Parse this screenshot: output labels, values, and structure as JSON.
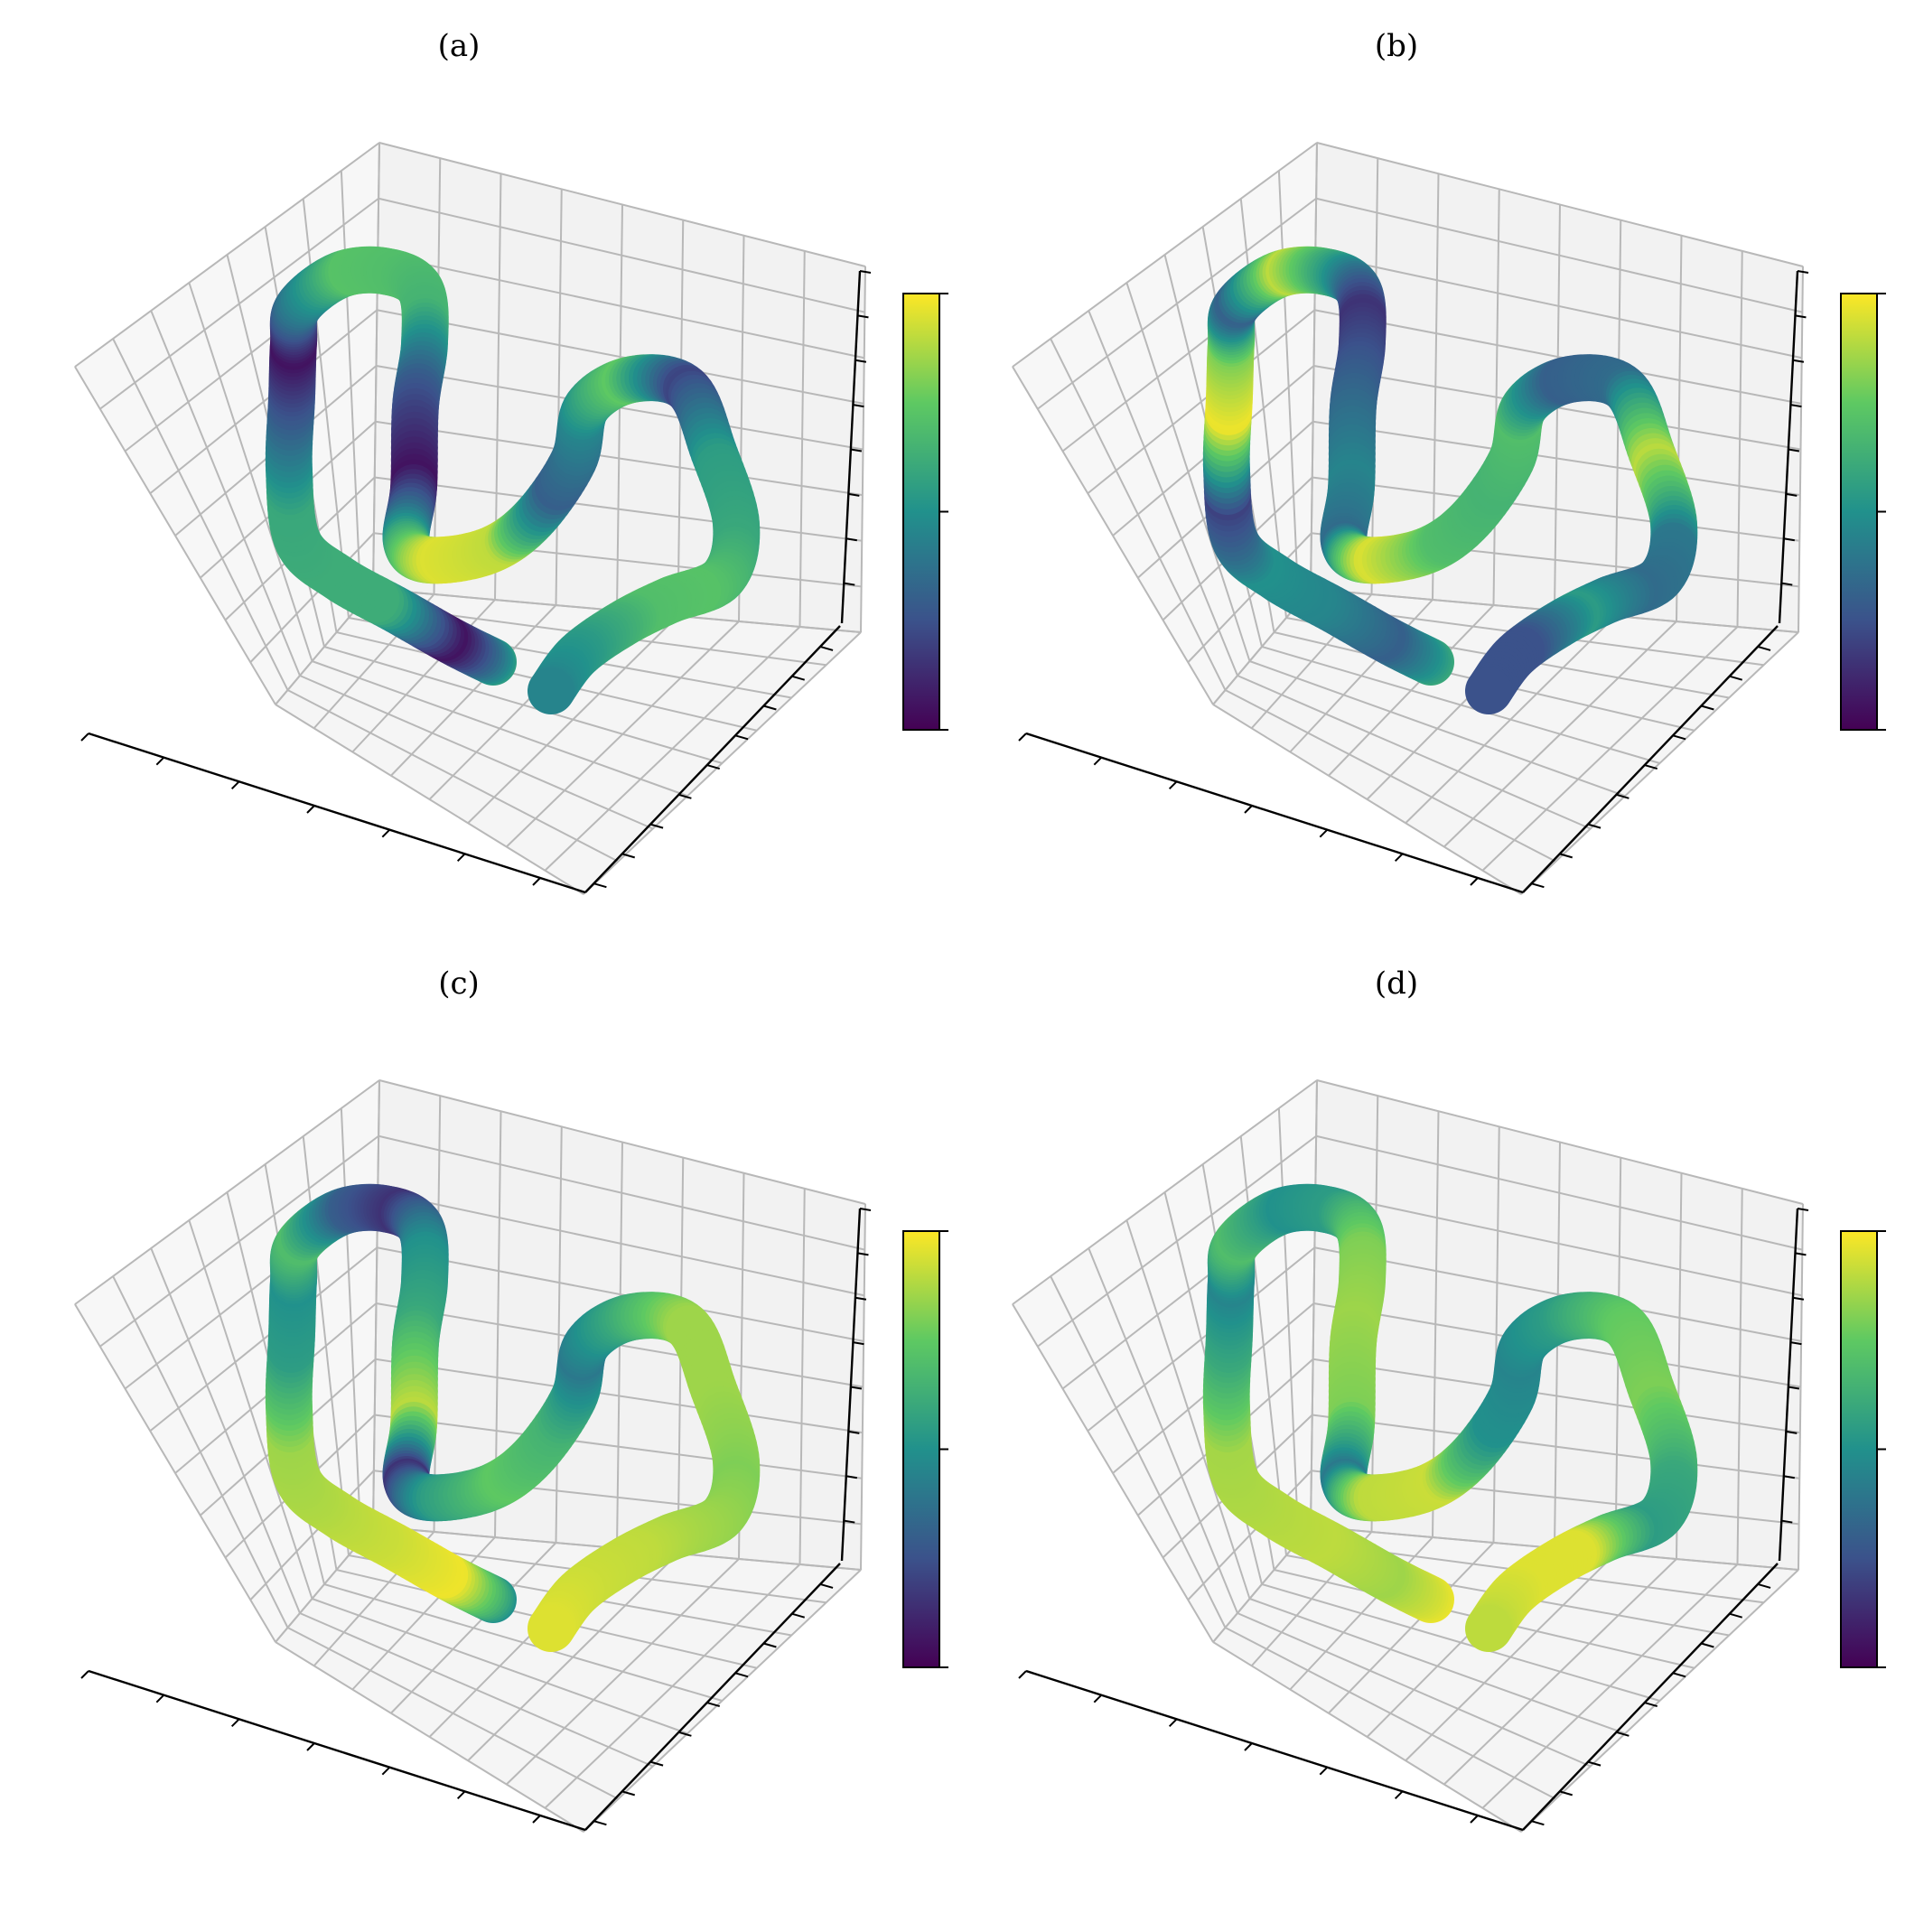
{
  "chart_data": [
    {
      "type": "scatter",
      "subtype": "3d-tube",
      "title": "(a)",
      "colormap": "viridis",
      "colormap_stops": [
        "#440154",
        "#3b528b",
        "#21918c",
        "#5ec962",
        "#fde725"
      ],
      "grid": true,
      "tick_labels_shown": false,
      "colorbar": {
        "ticks": 3,
        "placement": "right"
      },
      "curve_colors": [
        0.55,
        0.05,
        0.62,
        0.62,
        0.6,
        0.3,
        0.05,
        0.4,
        0.72,
        0.7,
        0.65,
        0.3,
        0.05,
        0.6,
        0.95,
        0.9,
        0.3,
        0.45,
        0.75,
        0.2,
        0.55,
        0.6,
        0.72,
        0.7,
        0.55,
        0.45
      ]
    },
    {
      "type": "scatter",
      "subtype": "3d-tube",
      "title": "(b)",
      "colormap": "viridis",
      "colormap_stops": [
        "#440154",
        "#3b528b",
        "#21918c",
        "#5ec962",
        "#fde725"
      ],
      "grid": true,
      "tick_labels_shown": false,
      "colorbar": {
        "ticks": 3,
        "placement": "right"
      },
      "curve_colors": [
        0.6,
        0.3,
        0.45,
        0.5,
        0.2,
        0.98,
        0.8,
        0.3,
        0.9,
        0.55,
        0.15,
        0.3,
        0.45,
        0.35,
        0.95,
        0.7,
        0.65,
        0.7,
        0.3,
        0.35,
        0.9,
        0.4,
        0.35,
        0.55,
        0.25,
        0.25
      ]
    },
    {
      "type": "scatter",
      "subtype": "3d-tube",
      "title": "(c)",
      "colormap": "viridis",
      "colormap_stops": [
        "#440154",
        "#3b528b",
        "#21918c",
        "#5ec962",
        "#fde725"
      ],
      "grid": true,
      "tick_labels_shown": false,
      "colorbar": {
        "ticks": 3,
        "placement": "right"
      },
      "curve_colors": [
        0.5,
        0.98,
        0.92,
        0.88,
        0.85,
        0.55,
        0.5,
        0.7,
        0.3,
        0.15,
        0.5,
        0.6,
        0.9,
        0.15,
        0.55,
        0.75,
        0.65,
        0.4,
        0.6,
        0.85,
        0.85,
        0.8,
        0.85,
        0.9,
        0.92,
        0.95
      ]
    },
    {
      "type": "scatter",
      "subtype": "3d-tube",
      "title": "(d)",
      "colormap": "viridis",
      "colormap_stops": [
        "#440154",
        "#3b528b",
        "#21918c",
        "#5ec962",
        "#fde725"
      ],
      "grid": true,
      "tick_labels_shown": false,
      "colorbar": {
        "ticks": 3,
        "placement": "right"
      },
      "curve_colors": [
        0.97,
        0.85,
        0.9,
        0.88,
        0.86,
        0.6,
        0.45,
        0.7,
        0.5,
        0.55,
        0.8,
        0.85,
        0.8,
        0.4,
        0.9,
        0.92,
        0.5,
        0.45,
        0.55,
        0.75,
        0.8,
        0.6,
        0.55,
        0.95,
        0.95,
        0.9
      ]
    }
  ]
}
